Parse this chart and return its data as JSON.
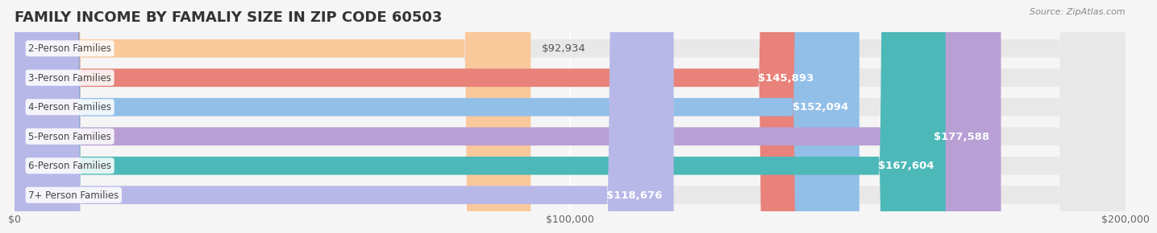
{
  "title": "FAMILY INCOME BY FAMALIY SIZE IN ZIP CODE 60503",
  "source": "Source: ZipAtlas.com",
  "categories": [
    "2-Person Families",
    "3-Person Families",
    "4-Person Families",
    "5-Person Families",
    "6-Person Families",
    "7+ Person Families"
  ],
  "values": [
    92934,
    145893,
    152094,
    177588,
    167604,
    118676
  ],
  "bar_colors": [
    "#f9c89b",
    "#e8827a",
    "#92bfe8",
    "#b89fd4",
    "#4db8b8",
    "#b8b8e8"
  ],
  "bar_edge_colors": [
    "#f5b87a",
    "#e06060",
    "#70aadf",
    "#a088c8",
    "#3aabab",
    "#a0a0de"
  ],
  "label_colors": [
    "#e8a060",
    "#d05050",
    "#5090c8",
    "#8868b8",
    "#2a9898",
    "#8888c8"
  ],
  "xlim": [
    0,
    200000
  ],
  "xticks": [
    0,
    100000,
    200000
  ],
  "xtick_labels": [
    "$0",
    "$100,000",
    "$200,000"
  ],
  "background_color": "#f5f5f5",
  "bar_bg_color": "#ebebeb",
  "title_fontsize": 13,
  "bar_height": 0.62,
  "value_fontsize": 9.5,
  "label_fontsize": 8.5
}
